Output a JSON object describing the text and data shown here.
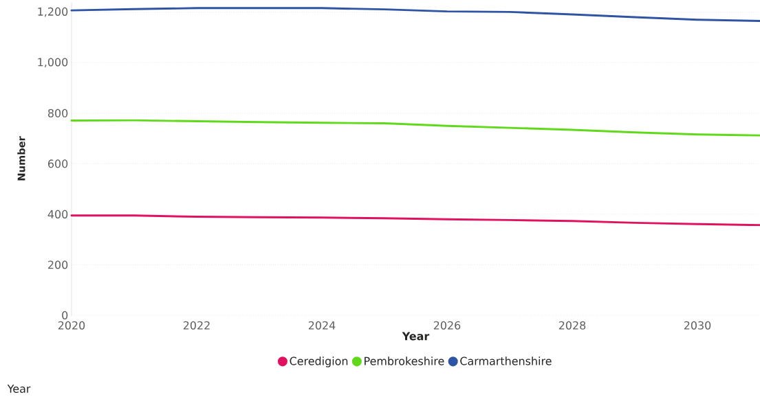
{
  "chart_data": {
    "type": "line",
    "xlabel": "Year",
    "ylabel": "Number",
    "x": [
      2020,
      2021,
      2022,
      2023,
      2024,
      2025,
      2026,
      2027,
      2028,
      2029,
      2030,
      2031
    ],
    "series": [
      {
        "name": "Ceredigion",
        "color": "#e0115f",
        "values": [
          395,
          395,
          390,
          388,
          387,
          384,
          380,
          377,
          373,
          366,
          361,
          357
        ]
      },
      {
        "name": "Pembrokeshire",
        "color": "#5fd91a",
        "values": [
          771,
          772,
          768,
          765,
          762,
          760,
          750,
          742,
          734,
          724,
          716,
          712
        ]
      },
      {
        "name": "Carmarthenshire",
        "color": "#2f54a4",
        "values": [
          1207,
          1212,
          1216,
          1216,
          1216,
          1211,
          1203,
          1201,
          1191,
          1180,
          1170,
          1165
        ]
      }
    ],
    "xlim": [
      2020,
      2031
    ],
    "ylim": [
      0,
      1240
    ],
    "xticks": [
      2020,
      2022,
      2024,
      2026,
      2028,
      2030
    ],
    "yticks": [
      0,
      200,
      400,
      600,
      800,
      {
        "value": 1000,
        "label": "1,000"
      },
      {
        "value": 1200,
        "label": "1,200"
      }
    ],
    "grid": "y",
    "legend": "bottom",
    "annotations": [
      "Year"
    ]
  }
}
